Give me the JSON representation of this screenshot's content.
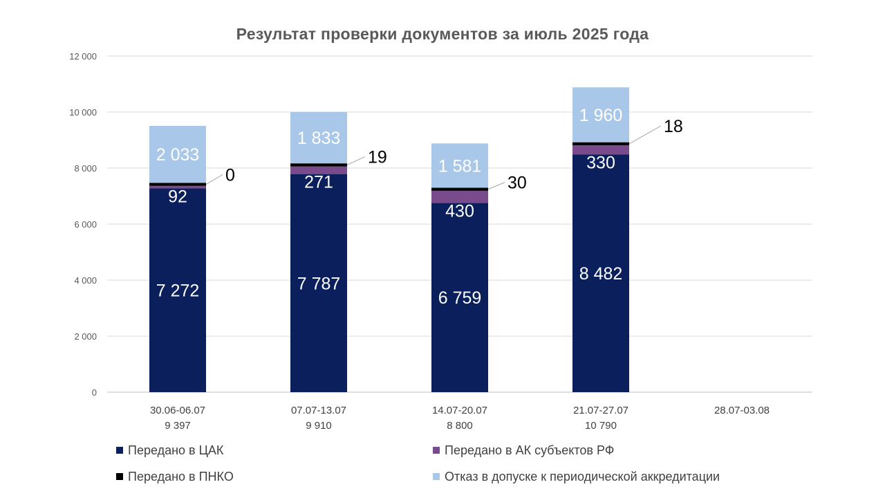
{
  "chart_data": {
    "type": "bar",
    "stacked": true,
    "title": "Результат проверки документов за июль 2025 года",
    "categories": [
      "30.06-06.07",
      "07.07-13.07",
      "14.07-20.07",
      "21.07-27.07",
      "28.07-03.08"
    ],
    "category_totals": [
      "9 397",
      "9 910",
      "8 800",
      "10 790",
      ""
    ],
    "ylim": [
      0,
      12000
    ],
    "yticks": [
      0,
      2000,
      4000,
      6000,
      8000,
      10000,
      12000
    ],
    "ytick_labels": [
      "0",
      "2 000",
      "4 000",
      "6 000",
      "8 000",
      "10 000",
      "12 000"
    ],
    "grid": true,
    "legend_position": "bottom",
    "series": [
      {
        "name": "Передано в ЦАК",
        "color": "#0a1f5c",
        "values": [
          7272,
          7787,
          6759,
          8482,
          null
        ],
        "labels": [
          "7 272",
          "7 787",
          "6 759",
          "8 482",
          ""
        ],
        "label_position": "inside"
      },
      {
        "name": "Передано в АК субъектов РФ",
        "color": "#7a4b8c",
        "values": [
          92,
          271,
          430,
          330,
          null
        ],
        "labels": [
          "92",
          "271",
          "430",
          "330",
          ""
        ],
        "label_position": "inside"
      },
      {
        "name": "Передано в ПНКО",
        "color": "#000000",
        "values": [
          0,
          19,
          30,
          18,
          null
        ],
        "labels": [
          "0",
          "19",
          "30",
          "18",
          ""
        ],
        "label_position": "callout"
      },
      {
        "name": "Отказ в допуске к периодической аккредитации",
        "color": "#a9c7e8",
        "values": [
          2033,
          1833,
          1581,
          1960,
          null
        ],
        "labels": [
          "2 033",
          "1 833",
          "1 581",
          "1 960",
          ""
        ],
        "label_position": "inside"
      }
    ]
  }
}
